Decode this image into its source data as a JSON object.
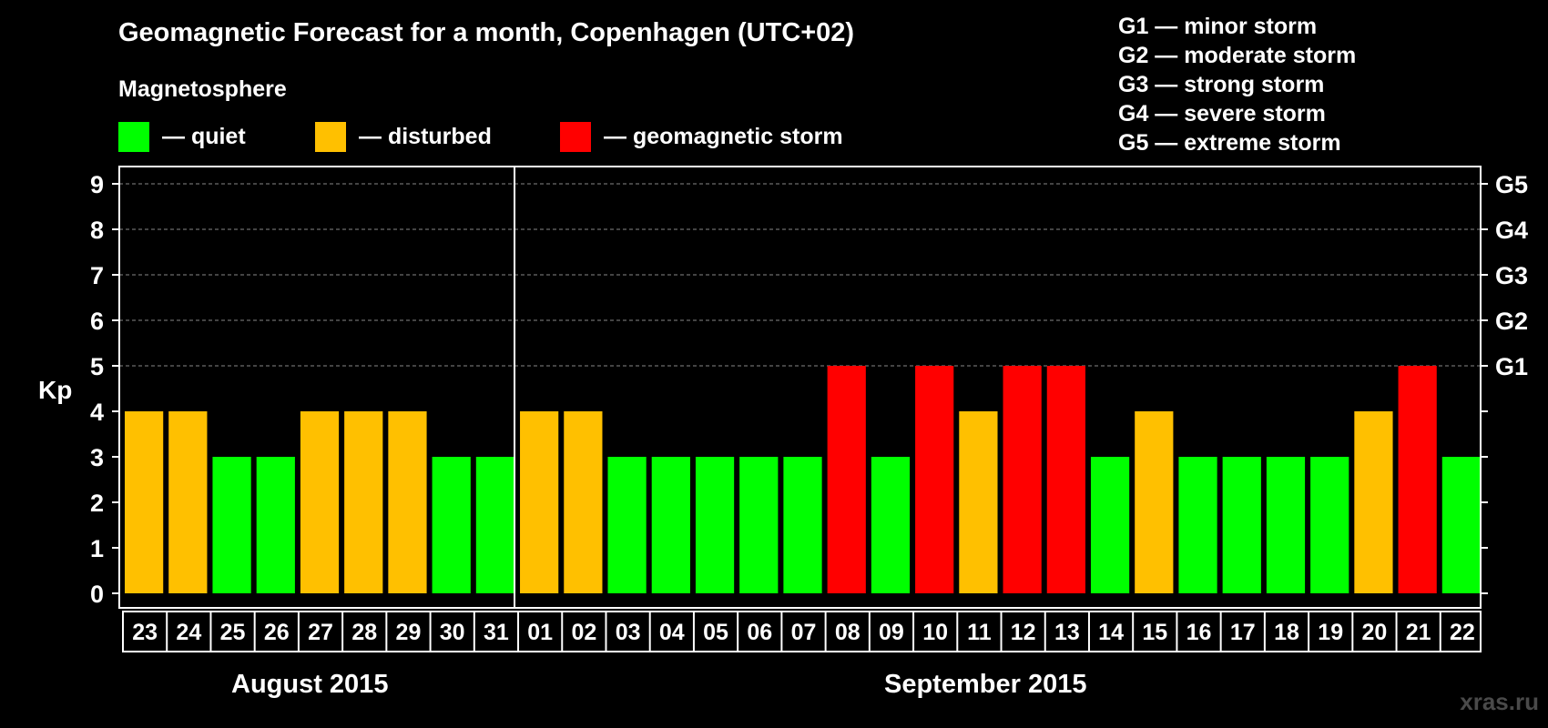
{
  "title": "Geomagnetic Forecast for a month, Copenhagen (UTC+02)",
  "legend": {
    "title": "Magnetosphere",
    "items": [
      {
        "label": "— quiet",
        "color": "#00ff00"
      },
      {
        "label": "— disturbed",
        "color": "#ffc000"
      },
      {
        "label": "— geomagnetic storm",
        "color": "#ff0000"
      }
    ]
  },
  "g_scale": [
    "G1 — minor storm",
    "G2 — moderate storm",
    "G3 — strong storm",
    "G4 — severe storm",
    "G5 — extreme storm"
  ],
  "credit": "xras.ru",
  "months": [
    "August 2015",
    "September 2015"
  ],
  "chart_data": {
    "type": "bar",
    "ylabel": "Kp",
    "ylim": [
      0,
      9
    ],
    "yticks": [
      0,
      1,
      2,
      3,
      4,
      5,
      6,
      7,
      8,
      9
    ],
    "right_labels": [
      {
        "kp": 5,
        "label": "G1"
      },
      {
        "kp": 6,
        "label": "G2"
      },
      {
        "kp": 7,
        "label": "G3"
      },
      {
        "kp": 8,
        "label": "G4"
      },
      {
        "kp": 9,
        "label": "G5"
      }
    ],
    "grid": "dashed horizontal",
    "categories": [
      "23",
      "24",
      "25",
      "26",
      "27",
      "28",
      "29",
      "30",
      "31",
      "01",
      "02",
      "03",
      "04",
      "05",
      "06",
      "07",
      "08",
      "09",
      "10",
      "11",
      "12",
      "13",
      "14",
      "15",
      "16",
      "17",
      "18",
      "19",
      "20",
      "21",
      "22"
    ],
    "values": [
      4,
      4,
      3,
      3,
      4,
      4,
      4,
      3,
      3,
      4,
      4,
      3,
      3,
      3,
      3,
      3,
      5,
      3,
      5,
      4,
      5,
      5,
      3,
      4,
      3,
      3,
      3,
      3,
      4,
      5,
      3
    ],
    "level_colors": {
      "quiet": "#00ff00",
      "disturbed": "#ffc000",
      "storm": "#ff0000"
    }
  }
}
